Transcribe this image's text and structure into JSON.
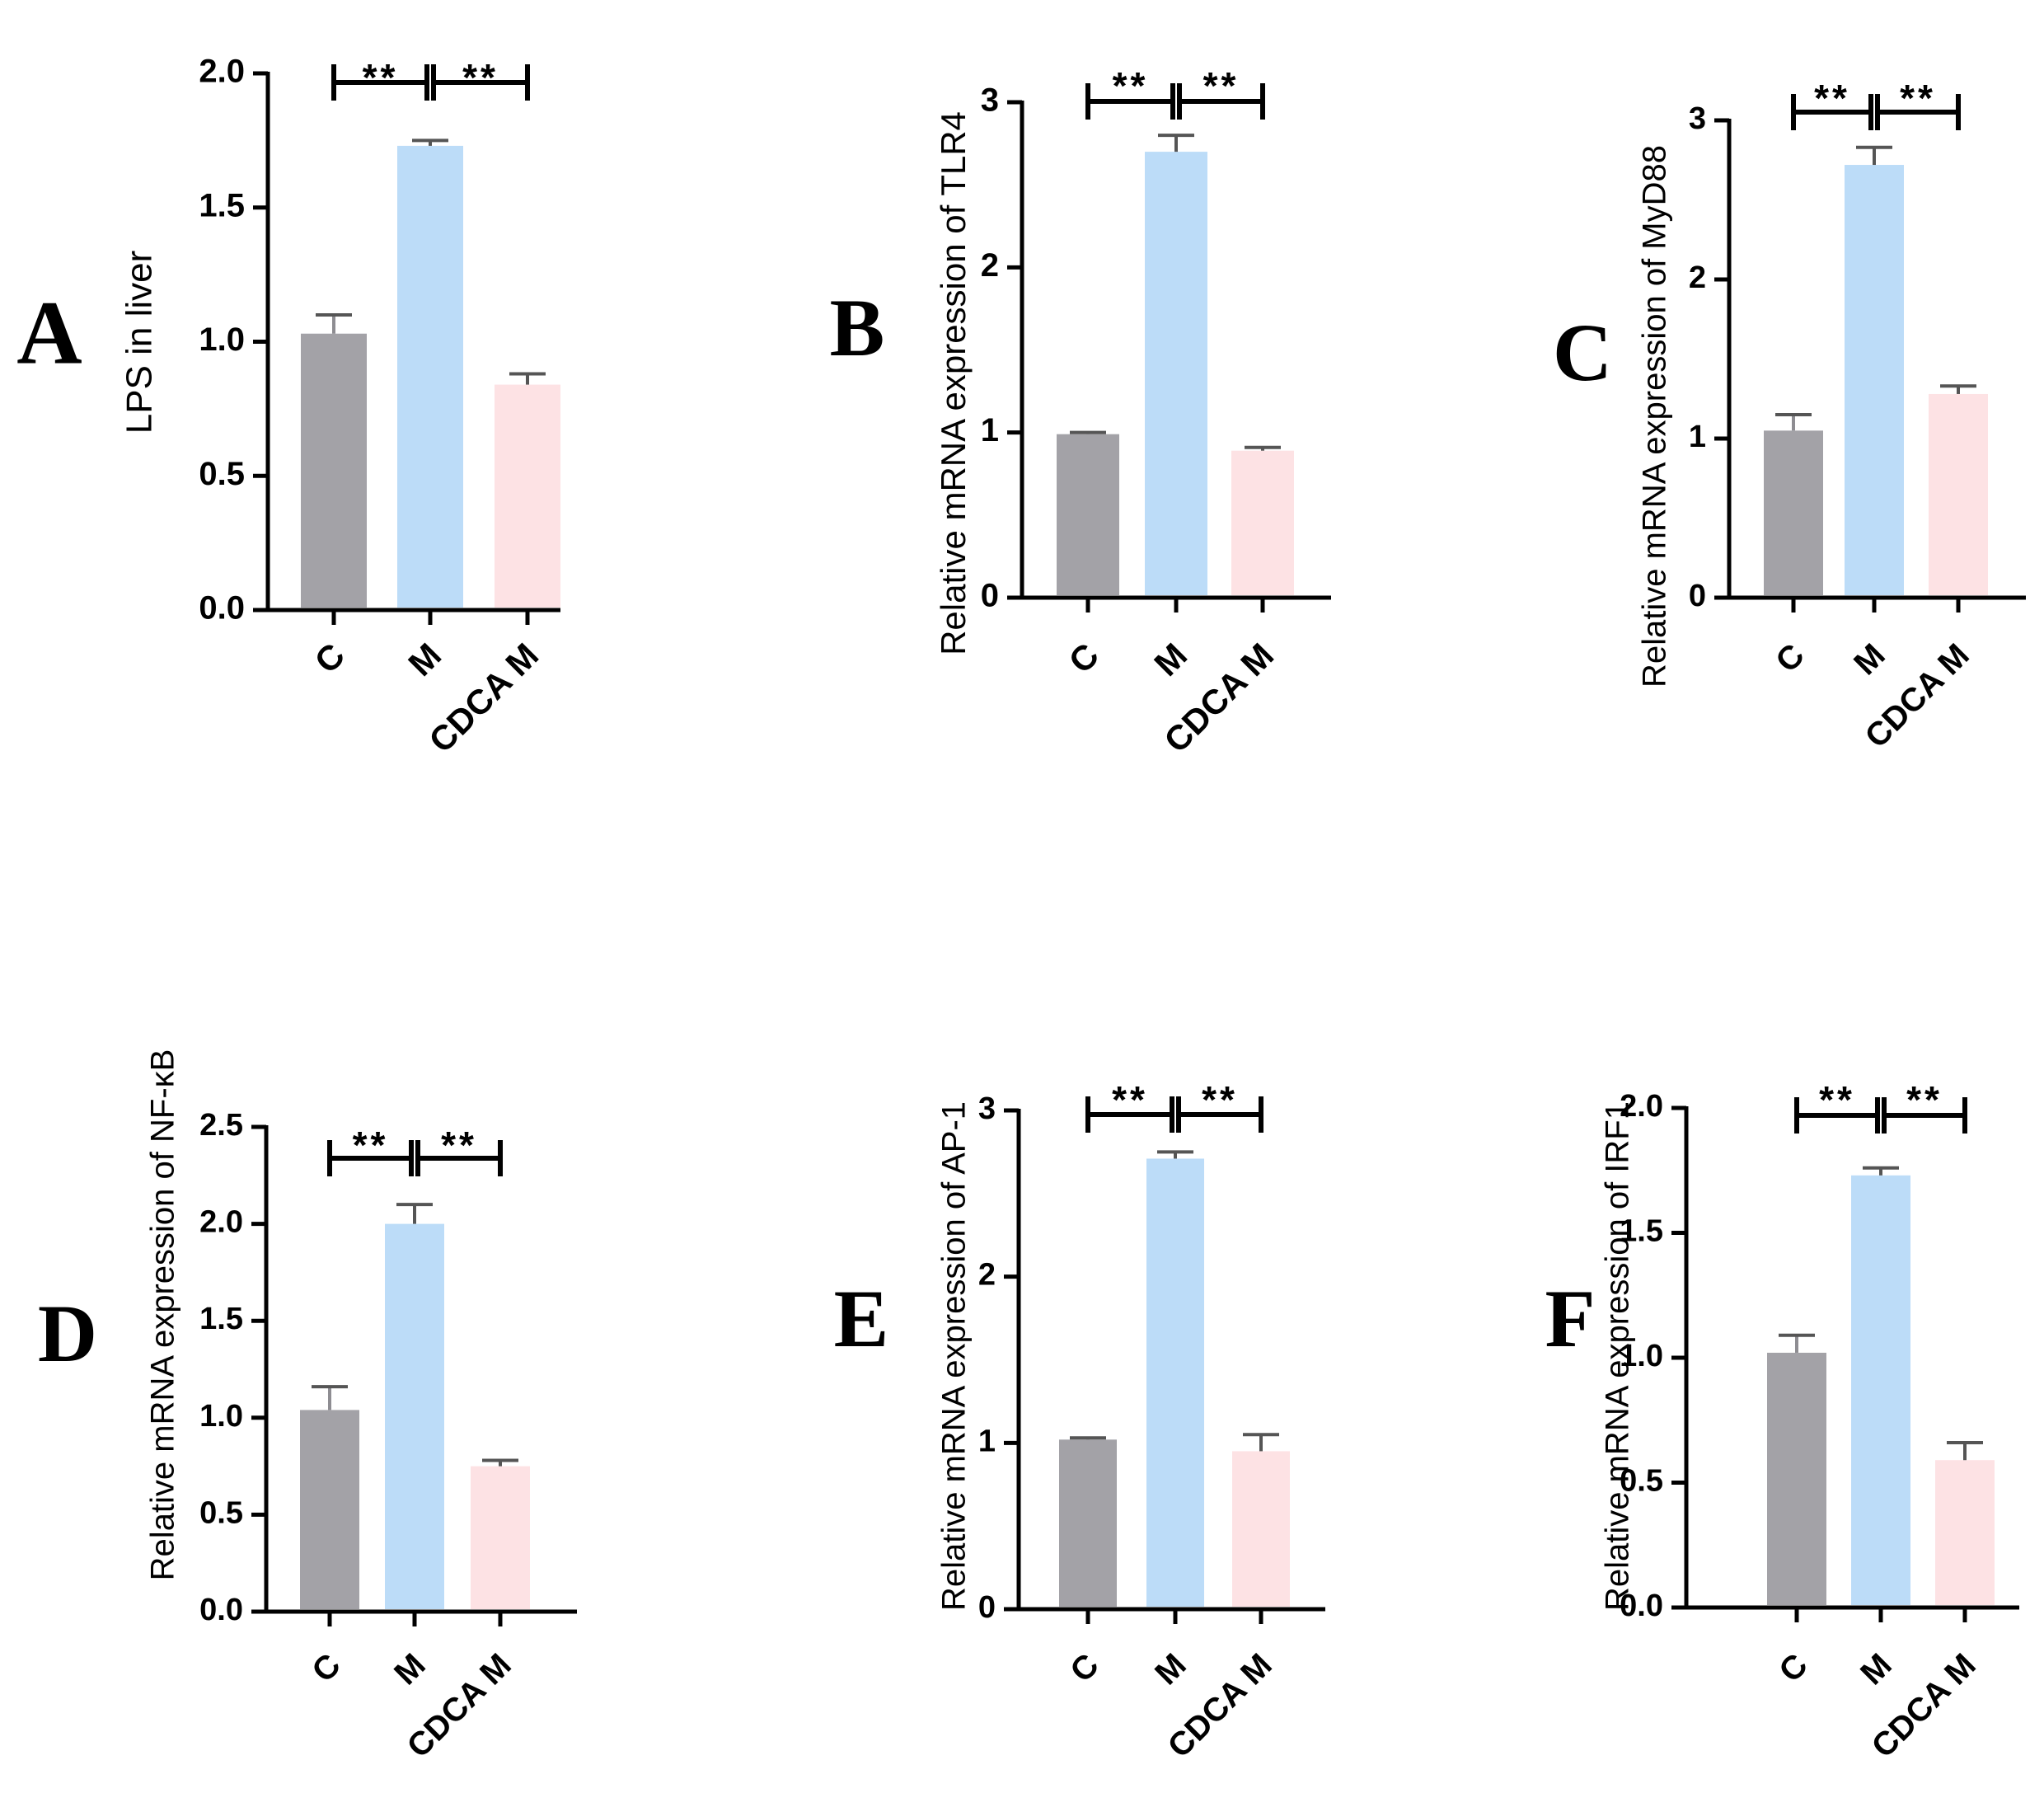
{
  "colors": {
    "C": "#a3a2a7",
    "M": "#bcdcf8",
    "CDCA M": "#fde2e4",
    "axis": "#000000"
  },
  "chart_data": [
    {
      "type": "bar",
      "panel": "A",
      "ylabel": "LPS in liver",
      "categories": [
        "C",
        "M",
        "CDCA M"
      ],
      "values": [
        1.03,
        1.73,
        0.84
      ],
      "errors": [
        0.07,
        0.02,
        0.04
      ],
      "ylim": [
        0,
        2.0
      ],
      "yticks": [
        "0.0",
        "0.5",
        "1.0",
        "1.5",
        "2.0"
      ],
      "significance": [
        "**",
        "**"
      ]
    },
    {
      "type": "bar",
      "panel": "B",
      "ylabel": "Relative mRNA expression of TLR4",
      "categories": [
        "C",
        "M",
        "CDCA M"
      ],
      "values": [
        0.99,
        2.7,
        0.89
      ],
      "errors": [
        0.01,
        0.1,
        0.02
      ],
      "ylim": [
        0,
        3
      ],
      "yticks": [
        "0",
        "1",
        "2",
        "3"
      ],
      "significance": [
        "**",
        "**"
      ]
    },
    {
      "type": "bar",
      "panel": "C",
      "ylabel": "Relative mRNA expression of MyD88",
      "categories": [
        "C",
        "M",
        "CDCA M"
      ],
      "values": [
        1.05,
        2.72,
        1.28
      ],
      "errors": [
        0.1,
        0.11,
        0.05
      ],
      "ylim": [
        0,
        3
      ],
      "yticks": [
        "0",
        "1",
        "2",
        "3"
      ],
      "significance": [
        "**",
        "**"
      ]
    },
    {
      "type": "bar",
      "panel": "D",
      "ylabel": "Relative mRNA expression of NF-κB",
      "categories": [
        "C",
        "M",
        "CDCA M"
      ],
      "values": [
        1.04,
        2.0,
        0.75
      ],
      "errors": [
        0.12,
        0.1,
        0.03
      ],
      "ylim": [
        0,
        2.5
      ],
      "yticks": [
        "0.0",
        "0.5",
        "1.0",
        "1.5",
        "2.0",
        "2.5"
      ],
      "significance": [
        "**",
        "**"
      ]
    },
    {
      "type": "bar",
      "panel": "E",
      "ylabel": "Relative mRNA expression of AP-1",
      "categories": [
        "C",
        "M",
        "CDCA M"
      ],
      "values": [
        1.02,
        2.71,
        0.95
      ],
      "errors": [
        0.01,
        0.04,
        0.1
      ],
      "ylim": [
        0,
        3
      ],
      "yticks": [
        "0",
        "1",
        "2",
        "3"
      ],
      "significance": [
        "**",
        "**"
      ]
    },
    {
      "type": "bar",
      "panel": "F",
      "ylabel": "Relative mRNA expression of IRF1",
      "categories": [
        "C",
        "M",
        "CDCA M"
      ],
      "values": [
        1.02,
        1.73,
        0.59
      ],
      "errors": [
        0.07,
        0.03,
        0.07
      ],
      "ylim": [
        0,
        2.0
      ],
      "yticks": [
        "0.0",
        "0.5",
        "1.0",
        "1.5",
        "2.0"
      ],
      "significance": [
        "**",
        "**"
      ]
    }
  ]
}
